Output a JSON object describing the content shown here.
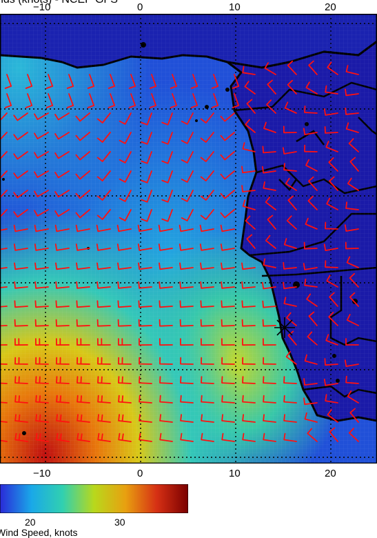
{
  "title": "nds (knots) - NCEP GFS",
  "lon_ticks": [
    "−10",
    "0",
    "10",
    "20"
  ],
  "colorbar": {
    "label": "Wind Speed, knots",
    "tick_labels": [
      "20",
      "30"
    ],
    "colors": [
      "#2a2ad8",
      "#1aa8e8",
      "#31d0b0",
      "#b8d81c",
      "#e8a010",
      "#d63014",
      "#7a0000"
    ]
  },
  "colors": {
    "ocean_low": "#1e3fd0",
    "land": "#1a1aa0",
    "barb": "#ff1010",
    "coast": "#000000",
    "grid": "#000000"
  },
  "marker": "asterisk"
}
